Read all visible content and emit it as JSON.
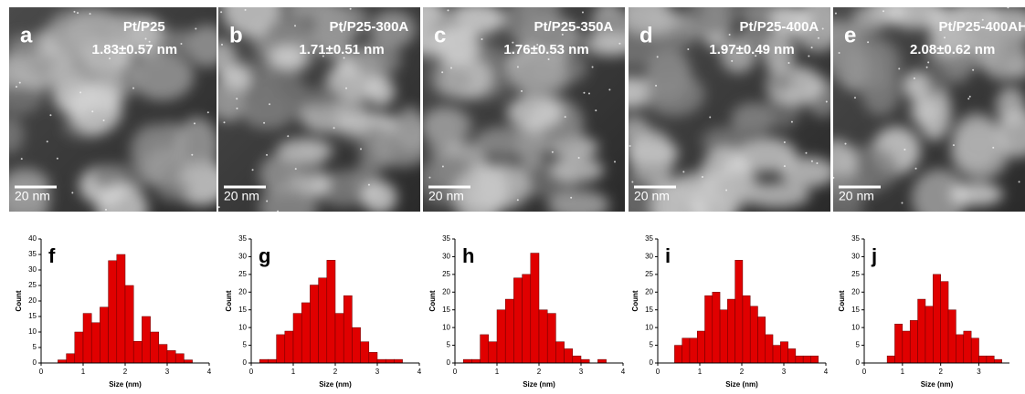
{
  "images": [
    {
      "letter": "a",
      "sample": "Pt/P25",
      "size": "1.83±0.57 nm",
      "scale": "20 nm"
    },
    {
      "letter": "b",
      "sample": "Pt/P25-300A",
      "size": "1.71±0.51 nm",
      "scale": "20 nm"
    },
    {
      "letter": "c",
      "sample": "Pt/P25-350A",
      "size": "1.76±0.53 nm",
      "scale": "20 nm"
    },
    {
      "letter": "d",
      "sample": "Pt/P25-400A",
      "size": "1.97±0.49 nm",
      "scale": "20 nm"
    },
    {
      "letter": "e",
      "sample": "Pt/P25-400AH",
      "size": "2.08±0.62 nm",
      "scale": "20 nm"
    }
  ],
  "chart_data": [
    {
      "type": "histogram",
      "label": "f",
      "xlabel": "Size (nm)",
      "ylabel": "Count",
      "color": "#e00000",
      "bins": [
        0.4,
        0.6,
        0.8,
        1.0,
        1.2,
        1.4,
        1.6,
        1.8,
        2.0,
        2.2,
        2.4,
        2.6,
        2.8,
        3.0,
        3.2,
        3.4,
        3.6
      ],
      "values": [
        1,
        3,
        10,
        16,
        13,
        18,
        33,
        35,
        25,
        7,
        15,
        10,
        6,
        4,
        3,
        1
      ],
      "xlim": [
        0,
        4
      ],
      "xticks": [
        0,
        1,
        2,
        3,
        4
      ],
      "ylim": [
        0,
        40
      ],
      "yticks": [
        0,
        5,
        10,
        15,
        20,
        25,
        30,
        35,
        40
      ]
    },
    {
      "type": "histogram",
      "label": "g",
      "xlabel": "Size (nm)",
      "ylabel": "Count",
      "color": "#e00000",
      "bins": [
        0.2,
        0.4,
        0.6,
        0.8,
        1.0,
        1.2,
        1.4,
        1.6,
        1.8,
        2.0,
        2.2,
        2.4,
        2.6,
        2.8,
        3.0,
        3.2,
        3.4,
        3.6
      ],
      "values": [
        1,
        1,
        8,
        9,
        14,
        17,
        22,
        24,
        29,
        14,
        19,
        10,
        6,
        3,
        1,
        1,
        1
      ],
      "xlim": [
        0,
        4
      ],
      "xticks": [
        0,
        1,
        2,
        3,
        4
      ],
      "ylim": [
        0,
        35
      ],
      "yticks": [
        0,
        5,
        10,
        15,
        20,
        25,
        30,
        35
      ]
    },
    {
      "type": "histogram",
      "label": "h",
      "xlabel": "Size (nm)",
      "ylabel": "Count",
      "color": "#e00000",
      "bins": [
        0.2,
        0.4,
        0.6,
        0.8,
        1.0,
        1.2,
        1.4,
        1.6,
        1.8,
        2.0,
        2.2,
        2.4,
        2.6,
        2.8,
        3.0,
        3.2,
        3.4,
        3.6
      ],
      "values": [
        1,
        1,
        8,
        6,
        15,
        18,
        24,
        25,
        31,
        15,
        14,
        6,
        4,
        2,
        1,
        0,
        1
      ],
      "xlim": [
        0,
        4
      ],
      "xticks": [
        0,
        1,
        2,
        3,
        4
      ],
      "ylim": [
        0,
        35
      ],
      "yticks": [
        0,
        5,
        10,
        15,
        20,
        25,
        30,
        35
      ]
    },
    {
      "type": "histogram",
      "label": "i",
      "xlabel": "Size (nm)",
      "ylabel": "Count",
      "color": "#e00000",
      "bins": [
        0.4,
        0.58,
        0.76,
        0.94,
        1.12,
        1.3,
        1.48,
        1.66,
        1.84,
        2.02,
        2.2,
        2.38,
        2.56,
        2.74,
        2.92,
        3.1,
        3.28,
        3.46,
        3.64,
        3.82
      ],
      "values": [
        5,
        7,
        7,
        9,
        19,
        20,
        15,
        18,
        29,
        19,
        16,
        13,
        8,
        5,
        6,
        4,
        2,
        2,
        2
      ],
      "xlim": [
        0,
        4
      ],
      "xticks": [
        0,
        1,
        2,
        3,
        4
      ],
      "ylim": [
        0,
        35
      ],
      "yticks": [
        0,
        5,
        10,
        15,
        20,
        25,
        30,
        35
      ]
    },
    {
      "type": "histogram",
      "label": "j",
      "xlabel": "Size (nm)",
      "ylabel": "Count",
      "color": "#e00000",
      "bins": [
        0.6,
        0.8,
        1.0,
        1.2,
        1.4,
        1.6,
        1.8,
        2.0,
        2.2,
        2.4,
        2.6,
        2.8,
        3.0,
        3.2,
        3.4,
        3.6
      ],
      "values": [
        2,
        11,
        9,
        12,
        18,
        16,
        25,
        23,
        15,
        8,
        9,
        7,
        2,
        2,
        1
      ],
      "xlim": [
        0,
        3.8
      ],
      "xticks": [
        0,
        1,
        2,
        3
      ],
      "ylim": [
        0,
        35
      ],
      "yticks": [
        0,
        5,
        10,
        15,
        20,
        25,
        30,
        35
      ]
    }
  ]
}
